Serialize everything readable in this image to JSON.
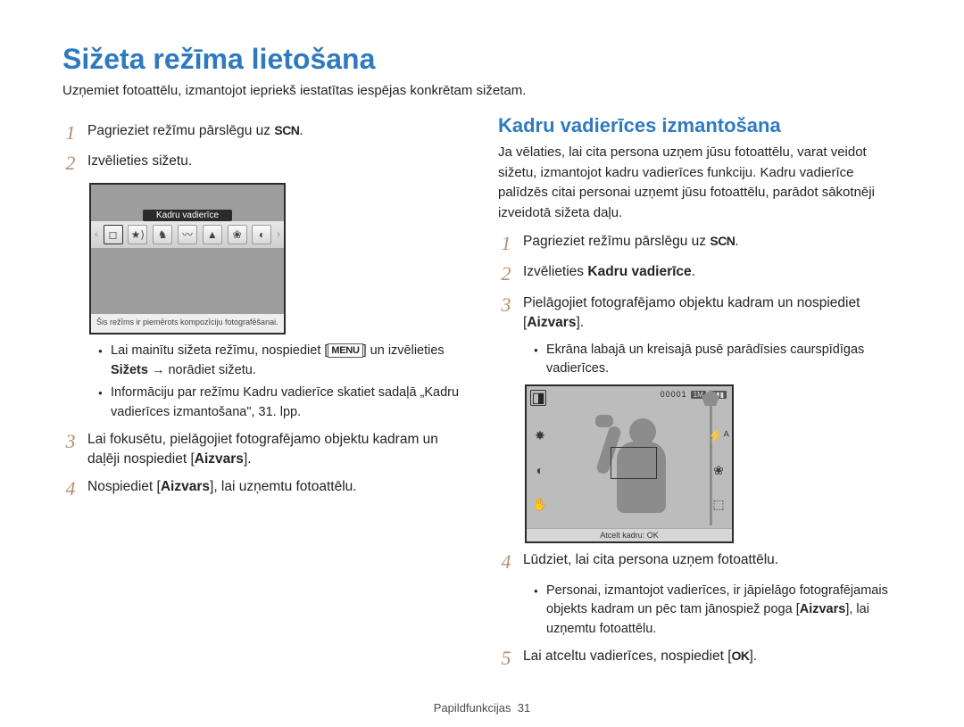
{
  "title": "Sižeta režīma lietošana",
  "intro": "Uzņemiet fotoattēlu, izmantojot iepriekš iestatītas iespējas konkrētam sižetam.",
  "colors": {
    "accent": "#2f7abf",
    "stepnum": "#b38e6e"
  },
  "left": {
    "steps": [
      {
        "n": "1",
        "text_pre": "Pagrieziet režīmu pārslēgu uz ",
        "icon": "SCN",
        "text_post": "."
      },
      {
        "n": "2",
        "text": "Izvēlieties sižetu."
      },
      {
        "n": "3",
        "text_pre": "Lai fokusētu, pielāgojiet fotografējamo objektu kadram un daļēji nospiediet [",
        "bold": "Aizvars",
        "text_post": "]."
      },
      {
        "n": "4",
        "text_pre": "Nospiediet [",
        "bold": "Aizvars",
        "text_post": "], lai uzņemtu fotoattēlu."
      }
    ],
    "shot": {
      "label": "Kadru vadierīce",
      "desc": "Šis režīms ir piemērots kompozīciju fotografēšanai.",
      "icons": [
        "◻",
        "★⟩",
        "♞",
        "〰",
        "▲",
        "❀",
        "◐"
      ]
    },
    "bullets": [
      {
        "pre": "Lai mainītu sižeta režīmu, nospiediet [",
        "menu": "MENU",
        "mid": "] un izvēlieties ",
        "bold": "Sižets",
        "post": " → norādiet sižetu."
      },
      {
        "text": "Informāciju par režīmu Kadru vadierīce skatiet sadaļā „Kadru vadierīces izmantošana\", 31. lpp."
      }
    ]
  },
  "right": {
    "section_title": "Kadru vadierīces izmantošana",
    "section_intro": "Ja vēlaties, lai cita persona uzņem jūsu fotoattēlu, varat veidot sižetu, izmantojot kadru vadierīces funkciju. Kadru vadierīce palīdzēs citai personai uzņemt jūsu fotoattēlu, parādot sākotnēji izveidotā sižeta daļu.",
    "steps": [
      {
        "n": "1",
        "text_pre": "Pagrieziet režīmu pārslēgu uz ",
        "icon": "SCN",
        "text_post": "."
      },
      {
        "n": "2",
        "text_pre": "Izvēlieties ",
        "bold": "Kadru vadierīce",
        "text_post": "."
      },
      {
        "n": "3",
        "text_pre": "Pielāgojiet fotografējamo objektu kadram un nospiediet [",
        "bold": "Aizvars",
        "text_post": "]."
      },
      {
        "n": "4",
        "text": "Lūdziet, lai cita persona uzņem fotoattēlu."
      },
      {
        "n": "5",
        "text_pre": "Lai atceltu vadierīces, nospiediet [",
        "icon": "OK",
        "text_post": "]."
      }
    ],
    "sub_bullet_3": "Ekrāna labajā un kreisajā pusē parādīsies caurspīdīgas vadierīces.",
    "sub_bullet_4": {
      "pre": "Personai, izmantojot vadierīces, ir jāpielāgo fotografējamais objekts kadram un pēc tam jānospiež poga [",
      "bold": "Aizvars",
      "post": "], lai uzņemtu fotoattēlu."
    },
    "shot": {
      "counter": "00001",
      "size": "1M",
      "footer": "Atcelt kadru: OK"
    }
  },
  "footer": {
    "section": "Papildfunkcijas",
    "page": "31"
  }
}
